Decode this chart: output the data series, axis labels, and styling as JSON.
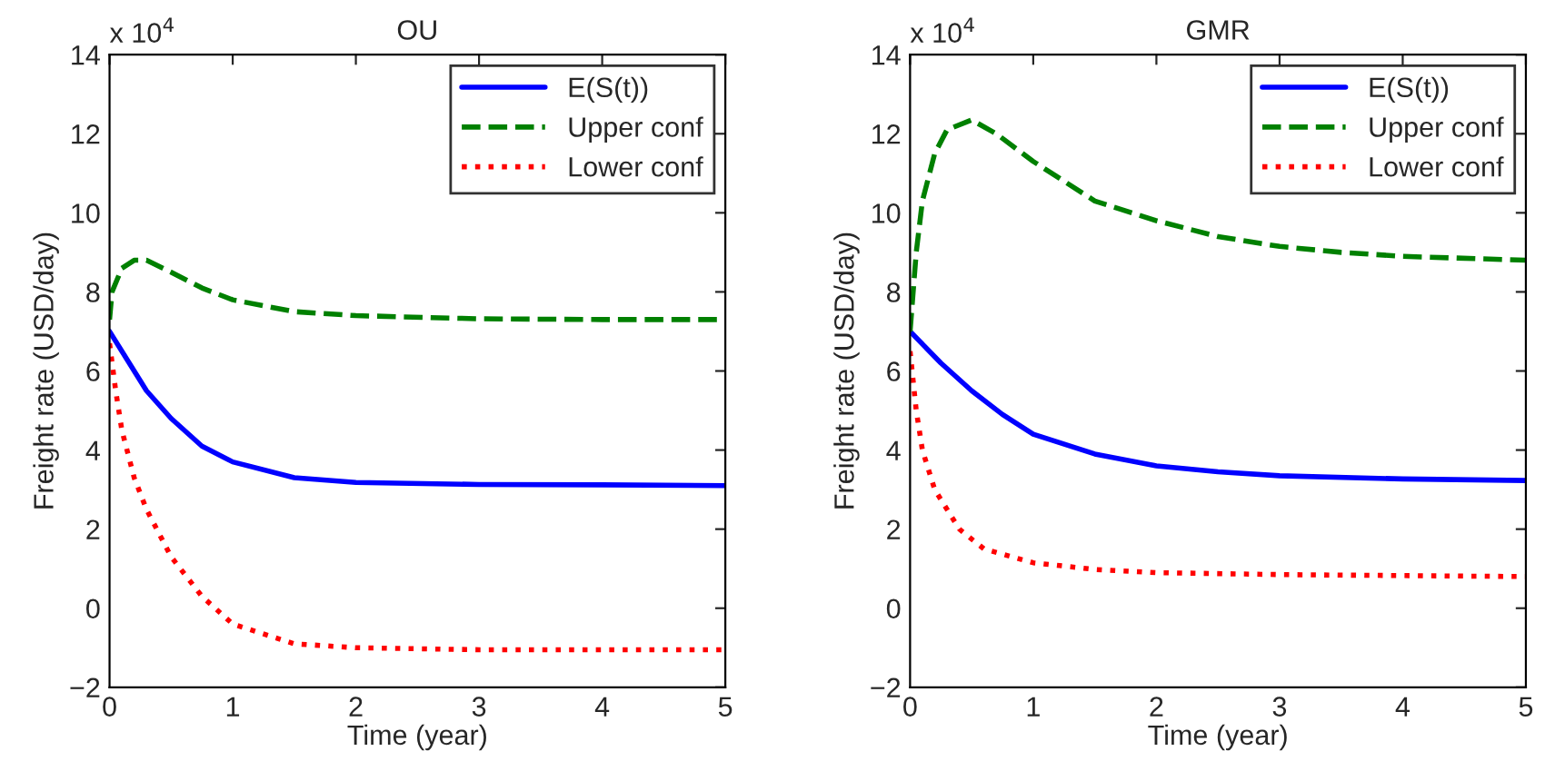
{
  "chart_data": [
    {
      "type": "line",
      "title": "OU",
      "xlabel": "Time (year)",
      "ylabel": "Freight rate (USD/day)",
      "annotations": [
        "x 10$^{4}$"
      ],
      "xlim": [
        0,
        5
      ],
      "xticks": [
        0,
        1,
        2,
        3,
        4,
        5
      ],
      "ylim": [
        -2,
        14
      ],
      "yticks": [
        {
          "value": -2,
          "label": "−2"
        },
        0,
        2,
        4,
        6,
        8,
        10,
        12,
        14
      ],
      "grid": false,
      "legend": "top right",
      "series": [
        {
          "name": "E(S(t))",
          "color": "#0000ff",
          "line_style": "solid",
          "x": [
            0,
            0.1,
            0.2,
            0.3,
            0.5,
            0.75,
            1,
            1.5,
            2,
            3,
            4,
            5
          ],
          "values": [
            7,
            6.5,
            6.0,
            5.5,
            4.8,
            4.1,
            3.7,
            3.3,
            3.18,
            3.13,
            3.12,
            3.1
          ]
        },
        {
          "name": "Upper conf",
          "color": "#008000",
          "line_style": "dashed",
          "x": [
            0,
            0.02,
            0.1,
            0.2,
            0.3,
            0.5,
            0.75,
            1,
            1.5,
            2,
            3,
            4,
            5
          ],
          "values": [
            7.3,
            8.0,
            8.6,
            8.8,
            8.8,
            8.5,
            8.1,
            7.8,
            7.5,
            7.4,
            7.32,
            7.3,
            7.3
          ]
        },
        {
          "name": "Lower conf",
          "color": "#ff0000",
          "line_style": "dotted",
          "x": [
            0,
            0.05,
            0.1,
            0.2,
            0.3,
            0.5,
            0.75,
            1,
            1.5,
            2,
            3,
            5
          ],
          "values": [
            6.7,
            5.5,
            4.5,
            3.3,
            2.5,
            1.3,
            0.3,
            -0.4,
            -0.9,
            -1.0,
            -1.05,
            -1.05
          ]
        }
      ]
    },
    {
      "type": "line",
      "title": "GMR",
      "xlabel": "Time (year)",
      "ylabel": "Freight rate (USD/day)",
      "annotations": [
        "x 10$^{4}$"
      ],
      "xlim": [
        0,
        5
      ],
      "xticks": [
        0,
        1,
        2,
        3,
        4,
        5
      ],
      "ylim": [
        -2,
        14
      ],
      "yticks": [
        {
          "value": -2,
          "label": "−2"
        },
        0,
        2,
        4,
        6,
        8,
        10,
        12,
        14
      ],
      "grid": false,
      "legend": "top right",
      "series": [
        {
          "name": "E(S(t))",
          "color": "#0000ff",
          "line_style": "solid",
          "x": [
            0,
            0.25,
            0.5,
            0.75,
            1,
            1.5,
            2,
            2.5,
            3,
            4,
            5
          ],
          "values": [
            7,
            6.2,
            5.5,
            4.9,
            4.4,
            3.9,
            3.6,
            3.45,
            3.35,
            3.27,
            3.23
          ]
        },
        {
          "name": "Upper conf",
          "color": "#008000",
          "line_style": "dashed",
          "x": [
            0,
            0.05,
            0.1,
            0.2,
            0.3,
            0.5,
            0.7,
            1,
            1.5,
            2,
            2.5,
            3,
            3.5,
            4,
            5
          ],
          "values": [
            7.0,
            9.0,
            10.3,
            11.5,
            12.1,
            12.35,
            12.0,
            11.3,
            10.3,
            9.8,
            9.4,
            9.15,
            9.0,
            8.9,
            8.8
          ]
        },
        {
          "name": "Lower conf",
          "color": "#ff0000",
          "line_style": "dotted",
          "x": [
            0,
            0.05,
            0.1,
            0.2,
            0.4,
            0.6,
            1,
            1.5,
            2,
            3,
            5
          ],
          "values": [
            6.5,
            5.0,
            4.0,
            3.0,
            2.0,
            1.5,
            1.15,
            0.98,
            0.9,
            0.85,
            0.8
          ]
        }
      ]
    }
  ]
}
